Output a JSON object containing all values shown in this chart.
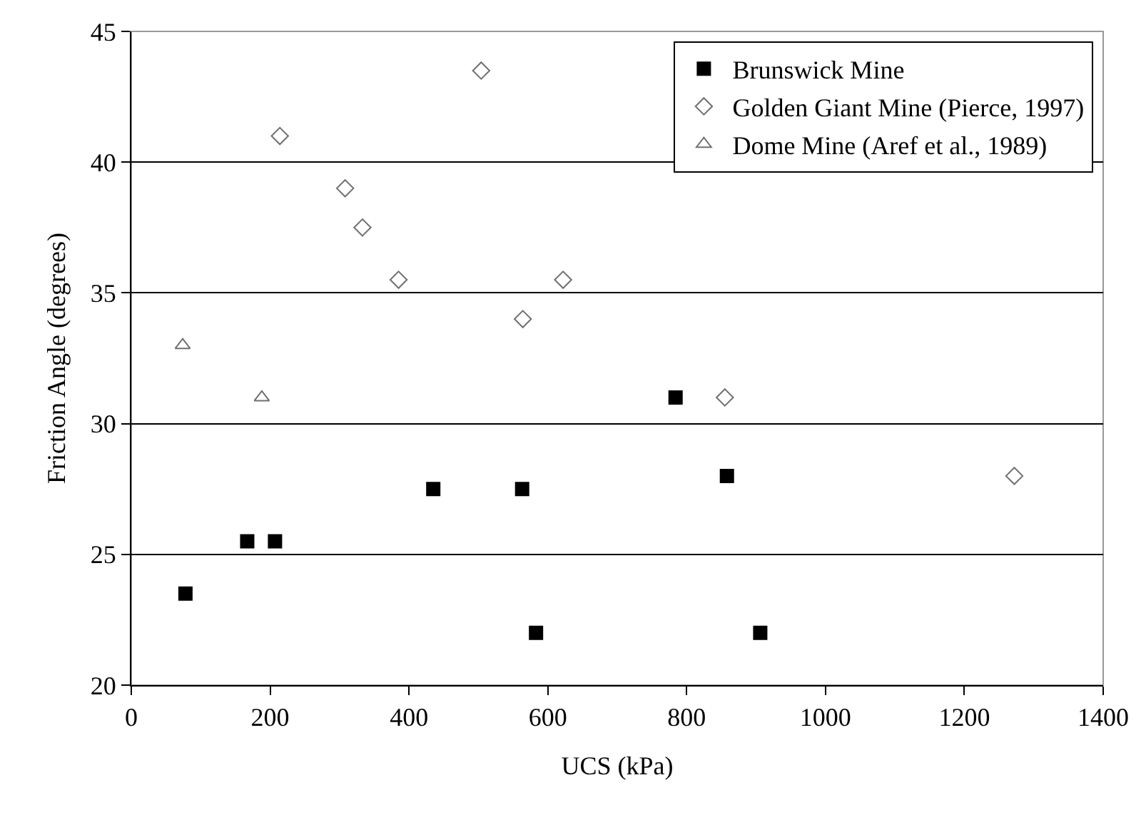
{
  "chart_data": {
    "type": "scatter",
    "xlabel": "UCS (kPa)",
    "ylabel": "Friction Angle (degrees)",
    "xlim": [
      0,
      1400
    ],
    "xticks": [
      0,
      200,
      400,
      600,
      800,
      1000,
      1200,
      1400
    ],
    "ylim": [
      20,
      45
    ],
    "yticks": [
      20,
      25,
      30,
      35,
      40,
      45
    ],
    "grid": "y",
    "legend": "top right",
    "series": [
      {
        "name": "Brunswick Mine",
        "color": "#000000",
        "marker": "square",
        "x": [
          78,
          167,
          207,
          435,
          563,
          583,
          784,
          858,
          906
        ],
        "values": [
          23.5,
          25.5,
          25.5,
          27.5,
          27.5,
          22,
          31,
          28,
          22
        ]
      },
      {
        "name": "Golden Giant Mine (Pierce, 1997)",
        "color": "#707070",
        "marker": "diamond",
        "x": [
          214,
          308,
          333,
          385,
          504,
          564,
          622,
          855,
          1272
        ],
        "values": [
          41,
          39,
          37.5,
          35.5,
          43.5,
          34,
          35.5,
          31,
          28
        ]
      },
      {
        "name": "Dome Mine (Aref et al., 1989)",
        "color": "#707070",
        "marker": "triangle",
        "x": [
          74,
          188
        ],
        "values": [
          33,
          31
        ]
      }
    ]
  }
}
